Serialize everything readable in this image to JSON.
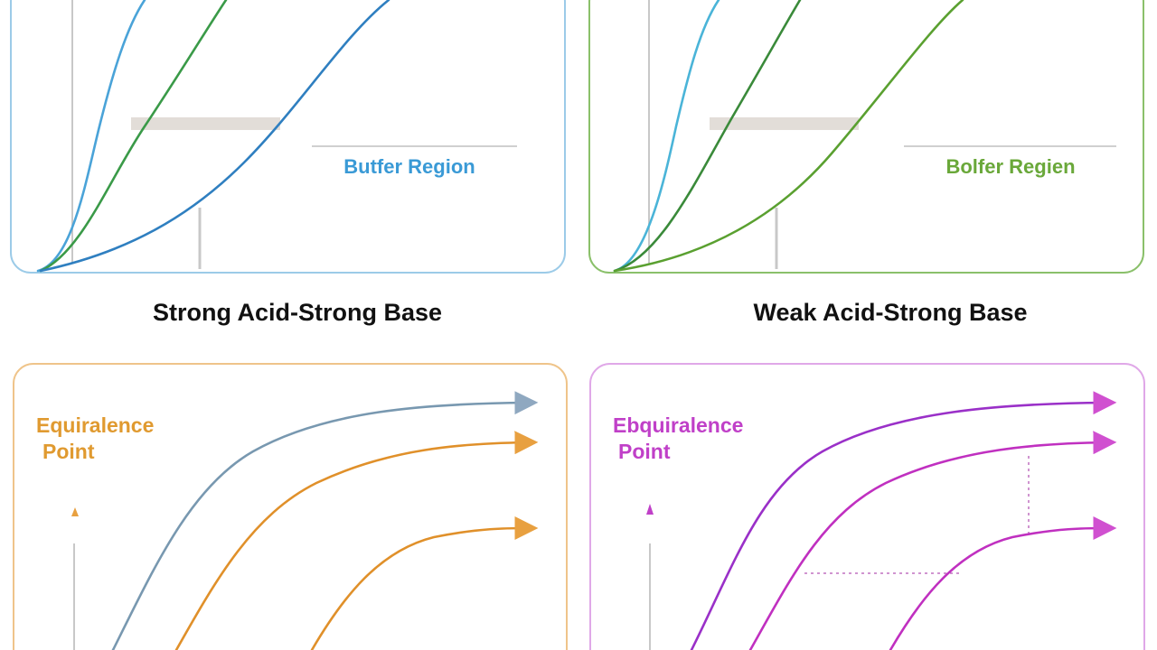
{
  "panels": [
    {
      "caption": "Strong Acid-Strong Base",
      "label": "Butfer Region"
    },
    {
      "caption": "Weak Acid-Strong Base",
      "label": "Bolfer Regien"
    },
    {
      "label_lines": [
        "Equiralence",
        "Point"
      ]
    },
    {
      "label_lines": [
        "Ebquiralence",
        "Point"
      ]
    }
  ]
}
